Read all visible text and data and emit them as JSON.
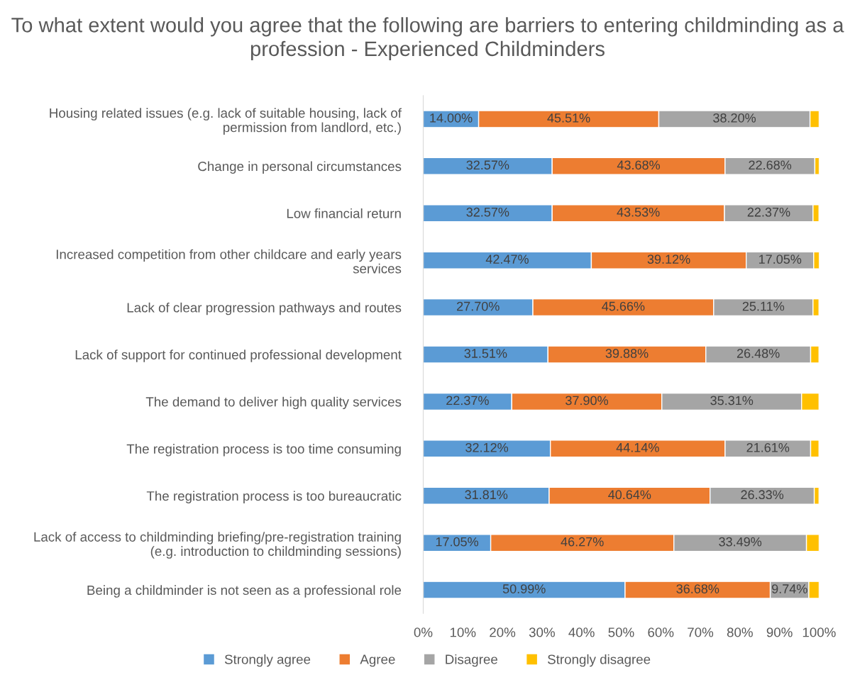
{
  "chart_data": {
    "type": "bar",
    "orientation": "horizontal",
    "stacked": true,
    "title": "To what extent would you agree that the following are barriers to entering childminding as a profession - Experienced Childminders",
    "categories": [
      "Housing related issues (e.g. lack of suitable housing, lack of permission from landlord, etc.)",
      "Change in personal circumstances",
      "Low financial return",
      "Increased competition from other childcare and early years services",
      "Lack of clear progression pathways and routes",
      "Lack of support for continued professional development",
      "The demand to deliver high quality services",
      "The registration process is too time consuming",
      "The registration process is too bureaucratic",
      "Lack of access to childminding briefing/pre-registration training (e.g. introduction to childminding sessions)",
      "Being a childminder is not seen as a professional role"
    ],
    "series": [
      {
        "name": "Strongly agree",
        "color": "#5b9bd5",
        "values": [
          14.0,
          32.57,
          32.57,
          42.47,
          27.7,
          31.51,
          22.37,
          32.12,
          31.81,
          17.05,
          50.99
        ],
        "value_labels": [
          "14.00%",
          "32.57%",
          "32.57%",
          "42.47%",
          "27.70%",
          "31.51%",
          "22.37%",
          "32.12%",
          "31.81%",
          "17.05%",
          "50.99%"
        ]
      },
      {
        "name": "Agree",
        "color": "#ed7d31",
        "values": [
          45.51,
          43.68,
          43.53,
          39.12,
          45.66,
          39.88,
          37.9,
          44.14,
          40.64,
          46.27,
          36.68
        ],
        "value_labels": [
          "45.51%",
          "43.68%",
          "43.53%",
          "39.12%",
          "45.66%",
          "39.88%",
          "37.90%",
          "44.14%",
          "40.64%",
          "46.27%",
          "36.68%"
        ]
      },
      {
        "name": "Disagree",
        "color": "#a5a5a5",
        "values": [
          38.2,
          22.68,
          22.37,
          17.05,
          25.11,
          26.48,
          35.31,
          21.61,
          26.33,
          33.49,
          9.74
        ],
        "value_labels": [
          "38.20%",
          "22.68%",
          "22.37%",
          "17.05%",
          "25.11%",
          "26.48%",
          "35.31%",
          "21.61%",
          "26.33%",
          "33.49%",
          "9.74%"
        ]
      },
      {
        "name": "Strongly disagree",
        "color": "#ffc000",
        "values": [
          2.3,
          1.1,
          1.5,
          1.4,
          1.5,
          2.1,
          4.4,
          2.1,
          1.2,
          3.2,
          2.6
        ]
      }
    ],
    "xlim": [
      0,
      100
    ],
    "xticks": [
      {
        "value": 0,
        "label": "0%"
      },
      {
        "value": 10,
        "label": "10%"
      },
      {
        "value": 20,
        "label": "20%"
      },
      {
        "value": 30,
        "label": "30%"
      },
      {
        "value": 40,
        "label": "40%"
      },
      {
        "value": 50,
        "label": "50%"
      },
      {
        "value": 60,
        "label": "60%"
      },
      {
        "value": 70,
        "label": "70%"
      },
      {
        "value": 80,
        "label": "80%"
      },
      {
        "value": 90,
        "label": "90%"
      },
      {
        "value": 100,
        "label": "100%"
      }
    ],
    "grid": false,
    "legend": "bottom"
  }
}
